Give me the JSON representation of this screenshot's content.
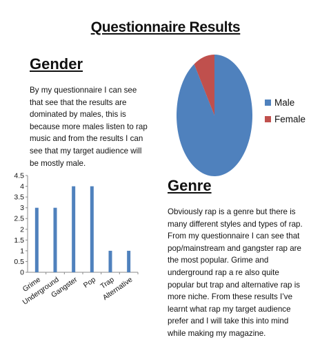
{
  "title": "Questionnaire Results",
  "gender": {
    "heading": "Gender",
    "text": "By my questionnaire I can see that see that the results are dominated by males, this is because more males listen to rap music and from the results I can see that my target audience will be mostly male."
  },
  "genre": {
    "heading": "Genre",
    "text": "Obviously rap is a genre but there is many different styles and types of rap. From my questionnaire I can see that pop/mainstream and gangster rap are the most popular. Grime and underground rap a re also quite popular but trap and alternative rap is more niche. From these results I’ve learnt what rap my target audience prefer and I will take this into mind while making my magazine."
  },
  "chart_data": [
    {
      "type": "pie",
      "categories": [
        "Male",
        "Female"
      ],
      "values": [
        91,
        9
      ],
      "colors": [
        "#4F81BD",
        "#C0504D"
      ],
      "legend": "right"
    },
    {
      "type": "bar",
      "categories": [
        "Grime",
        "Underground",
        "Gangster",
        "Pop",
        "Trap",
        "Alternative"
      ],
      "values": [
        3,
        3,
        4,
        4,
        1,
        1
      ],
      "ylim": [
        0,
        4.5
      ],
      "yticks": [
        "0",
        "0.5",
        "1",
        "1.5",
        "2",
        "2.5",
        "3",
        "3.5",
        "4",
        "4.5"
      ],
      "color": "#4F81BD",
      "grid": false
    }
  ]
}
